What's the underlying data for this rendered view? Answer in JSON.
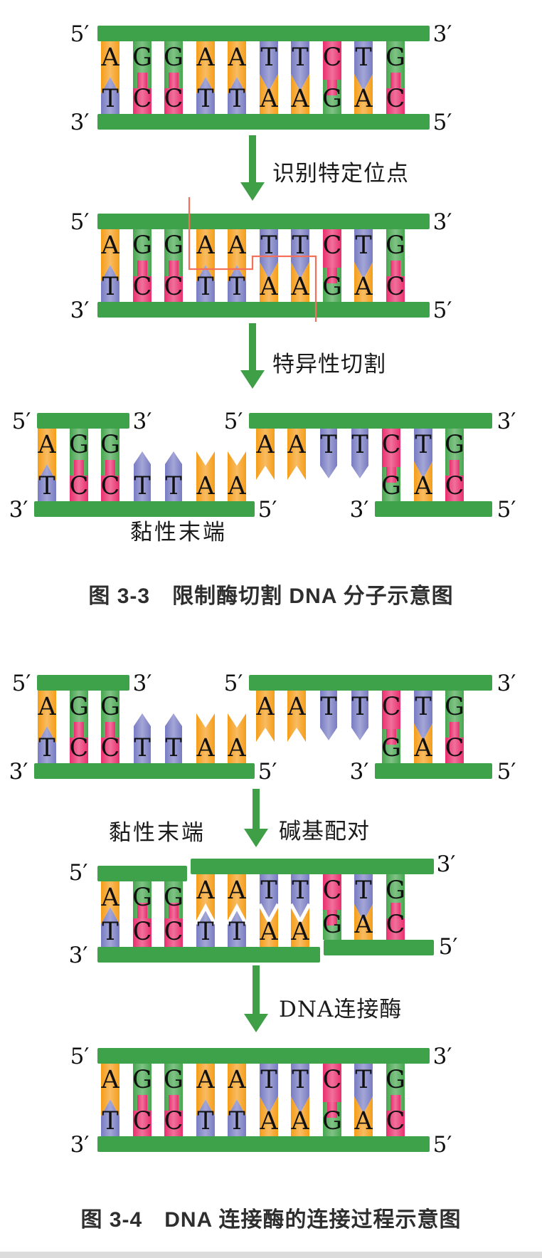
{
  "page": {
    "background": "#ffffff"
  },
  "colors": {
    "backbone": "#3ea24b",
    "arrow": "#3f9f47",
    "cut_line": "#f3705a",
    "letter": "#101010",
    "caption_text": "#2e2e2e",
    "label_text": "#1a1a1a",
    "page_edge": "#dcdcdc"
  },
  "base_colors": {
    "A": "#f59d18",
    "T": "#787cc2",
    "G": "#46a64e",
    "C": "#e92e6e"
  },
  "prime_labels": {
    "five": "5′",
    "three": "3′"
  },
  "steps": {
    "recognize": "识别特定位点",
    "cut": "特异性切割",
    "pair": "碱基配对",
    "ligase": "DNA连接酶"
  },
  "sticky_end_label": "黏性末端",
  "captions": {
    "fig_3_3": "图 3-3　限制酶切割 DNA 分子示意图",
    "fig_3_4": "图 3-4　DNA 连接酶的连接过程示意图"
  },
  "dna": {
    "duplex": {
      "top": [
        "A",
        "G",
        "G",
        "A",
        "A",
        "T",
        "T",
        "C",
        "T",
        "G"
      ],
      "bottom": [
        "T",
        "C",
        "C",
        "T",
        "T",
        "A",
        "A",
        "G",
        "A",
        "C"
      ]
    },
    "left_fragment": {
      "top": [
        "A",
        "G",
        "G"
      ],
      "bottom": [
        "T",
        "C",
        "C",
        "T",
        "T",
        "A",
        "A"
      ]
    },
    "right_fragment": {
      "top": [
        "A",
        "A",
        "T",
        "T",
        "C",
        "T",
        "G"
      ],
      "bottom": [
        "G",
        "A",
        "C"
      ]
    }
  }
}
